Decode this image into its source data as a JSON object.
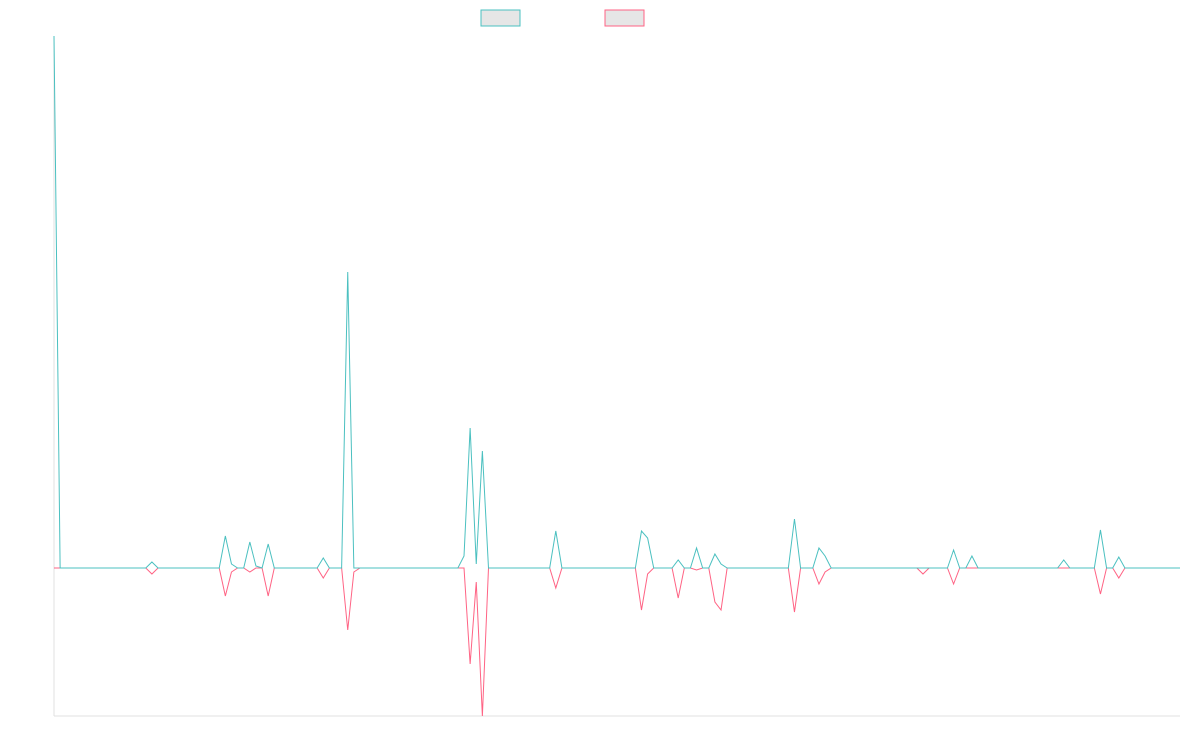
{
  "chart_data": {
    "type": "line",
    "ylim": [
      -148,
      532
    ],
    "series": [
      {
        "color": "#4bc0c0",
        "values": [
          532,
          0,
          0,
          0,
          0,
          0,
          0,
          0,
          0,
          0,
          0,
          0,
          0,
          0,
          0,
          0,
          6,
          0,
          0,
          0,
          0,
          0,
          0,
          0,
          0,
          0,
          0,
          0,
          32,
          4,
          0,
          0,
          26,
          2,
          0,
          24,
          0,
          0,
          0,
          0,
          0,
          0,
          0,
          0,
          10,
          0,
          0,
          0,
          296,
          0,
          0,
          0,
          0,
          0,
          0,
          0,
          0,
          0,
          0,
          0,
          0,
          0,
          0,
          0,
          0,
          0,
          0,
          12,
          140,
          4,
          117,
          0,
          0,
          0,
          0,
          0,
          0,
          0,
          0,
          0,
          0,
          0,
          37,
          0,
          0,
          0,
          0,
          0,
          0,
          0,
          0,
          0,
          0,
          0,
          0,
          0,
          37,
          30,
          0,
          0,
          0,
          0,
          8,
          0,
          0,
          20,
          0,
          0,
          14,
          4,
          0,
          0,
          0,
          0,
          0,
          0,
          0,
          0,
          0,
          0,
          0,
          49,
          0,
          0,
          0,
          20,
          12,
          0,
          0,
          0,
          0,
          0,
          0,
          0,
          0,
          0,
          0,
          0,
          0,
          0,
          0,
          0,
          0,
          0,
          0,
          0,
          0,
          18,
          0,
          0,
          12,
          0,
          0,
          0,
          0,
          0,
          0,
          0,
          0,
          0,
          0,
          0,
          0,
          0,
          0,
          8,
          0,
          0,
          0,
          0,
          0,
          38,
          0,
          0,
          11,
          0,
          0,
          0,
          0,
          0,
          0,
          0,
          0,
          0,
          0
        ]
      },
      {
        "color": "#ff6384",
        "values": [
          0,
          0,
          0,
          0,
          0,
          0,
          0,
          0,
          0,
          0,
          0,
          0,
          0,
          0,
          0,
          0,
          -6,
          0,
          0,
          0,
          0,
          0,
          0,
          0,
          0,
          0,
          0,
          0,
          -28,
          -4,
          0,
          0,
          -4,
          0,
          0,
          -28,
          0,
          0,
          0,
          0,
          0,
          0,
          0,
          0,
          -10,
          0,
          0,
          0,
          -62,
          -4,
          0,
          0,
          0,
          0,
          0,
          0,
          0,
          0,
          0,
          0,
          0,
          0,
          0,
          0,
          0,
          0,
          0,
          0,
          -96,
          -14,
          -148,
          0,
          0,
          0,
          0,
          0,
          0,
          0,
          0,
          0,
          0,
          0,
          -20,
          0,
          0,
          0,
          0,
          0,
          0,
          0,
          0,
          0,
          0,
          0,
          0,
          0,
          -42,
          -6,
          0,
          0,
          0,
          0,
          -30,
          0,
          0,
          -2,
          0,
          0,
          -34,
          -42,
          0,
          0,
          0,
          0,
          0,
          0,
          0,
          0,
          0,
          0,
          0,
          -44,
          0,
          0,
          0,
          -16,
          -4,
          0,
          0,
          0,
          0,
          0,
          0,
          0,
          0,
          0,
          0,
          0,
          0,
          0,
          0,
          0,
          -6,
          0,
          0,
          0,
          0,
          -16,
          0,
          0,
          0,
          0,
          0,
          0,
          0,
          0,
          0,
          0,
          0,
          0,
          0,
          0,
          0,
          0,
          0,
          0,
          0,
          0,
          0,
          0,
          0,
          -26,
          0,
          0,
          -10,
          0,
          0,
          0,
          0,
          0,
          0,
          0,
          0,
          0,
          0
        ]
      }
    ]
  }
}
